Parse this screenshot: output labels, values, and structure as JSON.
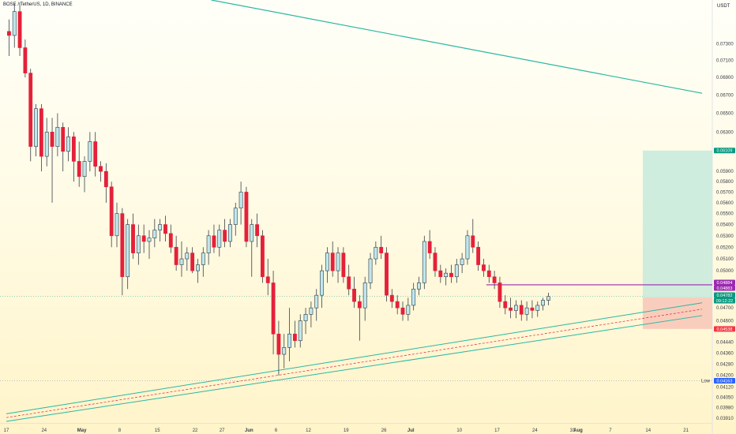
{
  "header": {
    "symbol": "BOSE / TetherUS, 1D, BINANCE"
  },
  "chart_data": {
    "type": "candlestick",
    "title": "BOSE / TetherUS, 1D, BINANCE",
    "unit": "USDT",
    "y_scale": "log",
    "ylim": [
      0.0388,
      0.0785
    ],
    "y_ticks": [
      "0.07300",
      "0.07100",
      "0.06900",
      "0.06700",
      "0.06500",
      "0.06300",
      "0.06100",
      "0.05900",
      "0.05800",
      "0.05700",
      "0.05600",
      "0.05500",
      "0.05400",
      "0.05300",
      "0.05200",
      "0.05100",
      "0.05000",
      "0.04900",
      "0.04700",
      "0.04600",
      "0.04440",
      "0.04360",
      "0.04280",
      "0.04200",
      "0.04120",
      "0.04050",
      "0.03980",
      "0.03910"
    ],
    "x_ticks": [
      {
        "label": "17",
        "date": "2023-04-17"
      },
      {
        "label": "24",
        "date": "2023-04-24"
      },
      {
        "label": "May",
        "date": "2023-05-01"
      },
      {
        "label": "8",
        "date": "2023-05-08"
      },
      {
        "label": "15",
        "date": "2023-05-15"
      },
      {
        "label": "22",
        "date": "2023-05-22"
      },
      {
        "label": "27",
        "date": "2023-05-27"
      },
      {
        "label": "Jun",
        "date": "2023-06-01"
      },
      {
        "label": "6",
        "date": "2023-06-06"
      },
      {
        "label": "12",
        "date": "2023-06-12"
      },
      {
        "label": "19",
        "date": "2023-06-19"
      },
      {
        "label": "26",
        "date": "2023-06-26"
      },
      {
        "label": "Jul",
        "date": "2023-07-01"
      },
      {
        "label": "10",
        "date": "2023-07-10"
      },
      {
        "label": "17",
        "date": "2023-07-17"
      },
      {
        "label": "24",
        "date": "2023-07-24"
      },
      {
        "label": "31",
        "date": "2023-07-31"
      },
      {
        "label": "Aug",
        "date": "2023-08-01"
      },
      {
        "label": "7",
        "date": "2023-08-07"
      },
      {
        "label": "14",
        "date": "2023-08-14"
      },
      {
        "label": "21",
        "date": "2023-08-21"
      }
    ],
    "candles_ohlc": [
      [
        0.0745,
        0.076,
        0.0715,
        0.074
      ],
      [
        0.074,
        0.078,
        0.0725,
        0.077
      ],
      [
        0.077,
        0.0782,
        0.0715,
        0.0725
      ],
      [
        0.0725,
        0.0735,
        0.069,
        0.0695
      ],
      [
        0.0695,
        0.07,
        0.06,
        0.0615
      ],
      [
        0.0615,
        0.066,
        0.0605,
        0.0655
      ],
      [
        0.0655,
        0.066,
        0.059,
        0.0605
      ],
      [
        0.0605,
        0.0645,
        0.0595,
        0.063
      ],
      [
        0.063,
        0.0645,
        0.056,
        0.0615
      ],
      [
        0.0615,
        0.065,
        0.0605,
        0.0635
      ],
      [
        0.0635,
        0.064,
        0.059,
        0.061
      ],
      [
        0.061,
        0.0635,
        0.06,
        0.0625
      ],
      [
        0.0625,
        0.063,
        0.058,
        0.06
      ],
      [
        0.06,
        0.062,
        0.0575,
        0.0585
      ],
      [
        0.0585,
        0.0605,
        0.057,
        0.06
      ],
      [
        0.06,
        0.063,
        0.059,
        0.062
      ],
      [
        0.062,
        0.063,
        0.0585,
        0.0595
      ],
      [
        0.0595,
        0.06,
        0.058,
        0.059
      ],
      [
        0.059,
        0.0598,
        0.056,
        0.0575
      ],
      [
        0.0575,
        0.058,
        0.052,
        0.053
      ],
      [
        0.053,
        0.056,
        0.052,
        0.055
      ],
      [
        0.055,
        0.0555,
        0.048,
        0.0495
      ],
      [
        0.0495,
        0.0545,
        0.0485,
        0.054
      ],
      [
        0.054,
        0.055,
        0.051,
        0.0515
      ],
      [
        0.0515,
        0.054,
        0.0505,
        0.053
      ],
      [
        0.053,
        0.054,
        0.0515,
        0.0525
      ],
      [
        0.0525,
        0.0535,
        0.051,
        0.0528
      ],
      [
        0.0528,
        0.0545,
        0.052,
        0.0535
      ],
      [
        0.0535,
        0.0545,
        0.0525,
        0.054
      ],
      [
        0.054,
        0.0548,
        0.0525,
        0.0532
      ],
      [
        0.0532,
        0.054,
        0.0515,
        0.052
      ],
      [
        0.052,
        0.053,
        0.05,
        0.0505
      ],
      [
        0.0505,
        0.0525,
        0.0495,
        0.051
      ],
      [
        0.051,
        0.052,
        0.05,
        0.0515
      ],
      [
        0.0515,
        0.052,
        0.0498,
        0.05
      ],
      [
        0.05,
        0.051,
        0.049,
        0.0505
      ],
      [
        0.0505,
        0.052,
        0.0495,
        0.0515
      ],
      [
        0.0515,
        0.0535,
        0.0505,
        0.053
      ],
      [
        0.053,
        0.054,
        0.0515,
        0.052
      ],
      [
        0.052,
        0.054,
        0.0512,
        0.0535
      ],
      [
        0.0535,
        0.0545,
        0.052,
        0.0525
      ],
      [
        0.0525,
        0.0545,
        0.052,
        0.054
      ],
      [
        0.054,
        0.056,
        0.053,
        0.0555
      ],
      [
        0.0555,
        0.058,
        0.054,
        0.057
      ],
      [
        0.057,
        0.0575,
        0.052,
        0.0525
      ],
      [
        0.0525,
        0.0545,
        0.0495,
        0.054
      ],
      [
        0.054,
        0.055,
        0.052,
        0.053
      ],
      [
        0.053,
        0.0535,
        0.049,
        0.0495
      ],
      [
        0.0495,
        0.051,
        0.048,
        0.049
      ],
      [
        0.049,
        0.05,
        0.0435,
        0.045
      ],
      [
        0.045,
        0.046,
        0.042,
        0.0435
      ],
      [
        0.0435,
        0.045,
        0.0425,
        0.044
      ],
      [
        0.044,
        0.047,
        0.043,
        0.045
      ],
      [
        0.045,
        0.046,
        0.044,
        0.0445
      ],
      [
        0.0445,
        0.0465,
        0.044,
        0.046
      ],
      [
        0.046,
        0.047,
        0.045,
        0.0465
      ],
      [
        0.0465,
        0.0475,
        0.0455,
        0.047
      ],
      [
        0.047,
        0.0485,
        0.046,
        0.048
      ],
      [
        0.048,
        0.0505,
        0.047,
        0.05
      ],
      [
        0.05,
        0.052,
        0.049,
        0.0515
      ],
      [
        0.0515,
        0.0525,
        0.0495,
        0.05
      ],
      [
        0.05,
        0.052,
        0.049,
        0.0515
      ],
      [
        0.0515,
        0.052,
        0.049,
        0.0495
      ],
      [
        0.0495,
        0.0505,
        0.048,
        0.0485
      ],
      [
        0.0485,
        0.0495,
        0.047,
        0.0475
      ],
      [
        0.0475,
        0.048,
        0.0445,
        0.047
      ],
      [
        0.047,
        0.0495,
        0.046,
        0.049
      ],
      [
        0.049,
        0.0515,
        0.0485,
        0.051
      ],
      [
        0.051,
        0.0525,
        0.0505,
        0.052
      ],
      [
        0.052,
        0.053,
        0.051,
        0.0515
      ],
      [
        0.0515,
        0.052,
        0.0475,
        0.048
      ],
      [
        0.048,
        0.0485,
        0.047,
        0.0475
      ],
      [
        0.0475,
        0.048,
        0.0465,
        0.047
      ],
      [
        0.047,
        0.0475,
        0.046,
        0.0465
      ],
      [
        0.0465,
        0.0478,
        0.046,
        0.0472
      ],
      [
        0.0472,
        0.049,
        0.0468,
        0.0485
      ],
      [
        0.0485,
        0.0495,
        0.048,
        0.049
      ],
      [
        0.049,
        0.053,
        0.0485,
        0.0525
      ],
      [
        0.0525,
        0.0535,
        0.051,
        0.0515
      ],
      [
        0.0515,
        0.052,
        0.0495,
        0.05
      ],
      [
        0.05,
        0.0505,
        0.049,
        0.0495
      ],
      [
        0.0495,
        0.0502,
        0.0488,
        0.0498
      ],
      [
        0.0498,
        0.0505,
        0.049,
        0.0495
      ],
      [
        0.0495,
        0.051,
        0.049,
        0.0505
      ],
      [
        0.0505,
        0.0515,
        0.0498,
        0.051
      ],
      [
        0.051,
        0.0535,
        0.0505,
        0.053
      ],
      [
        0.053,
        0.0545,
        0.0515,
        0.052
      ],
      [
        0.052,
        0.0525,
        0.05,
        0.0505
      ],
      [
        0.0505,
        0.051,
        0.0495,
        0.05
      ],
      [
        0.05,
        0.0505,
        0.049,
        0.0495
      ],
      [
        0.0495,
        0.05,
        0.0485,
        0.049
      ],
      [
        0.049,
        0.0495,
        0.047,
        0.0475
      ],
      [
        0.0475,
        0.048,
        0.0465,
        0.047
      ],
      [
        0.047,
        0.0478,
        0.0462,
        0.0468
      ],
      [
        0.0468,
        0.0476,
        0.0462,
        0.0472
      ],
      [
        0.0472,
        0.0476,
        0.046,
        0.0465
      ],
      [
        0.0465,
        0.0475,
        0.046,
        0.047
      ],
      [
        0.047,
        0.0476,
        0.0462,
        0.0468
      ],
      [
        0.0468,
        0.0475,
        0.0463,
        0.0472
      ],
      [
        0.0472,
        0.0478,
        0.0468,
        0.0476
      ],
      [
        0.0476,
        0.0482,
        0.0472,
        0.0479
      ]
    ],
    "price_labels": [
      {
        "value": "0.06109",
        "color": "#089981"
      },
      {
        "value": "0.04884",
        "color": "#9c27b0"
      },
      {
        "value": "0.04883",
        "color": "#9c27b0"
      },
      {
        "value": "0.04782",
        "color": "#089981"
      },
      {
        "value": "09:12:22",
        "color": "#089981"
      },
      {
        "value": "0.04538",
        "color": "#f23645"
      },
      {
        "value": "0.04163",
        "color": "#2962ff"
      }
    ],
    "low_label": "Low",
    "colors": {
      "up": "#bfe7ee",
      "down": "#e5203a",
      "line": "#2bb7a3",
      "level": "#9c27b0",
      "target": "#c7eadc",
      "stop": "#f8c6b7"
    }
  }
}
